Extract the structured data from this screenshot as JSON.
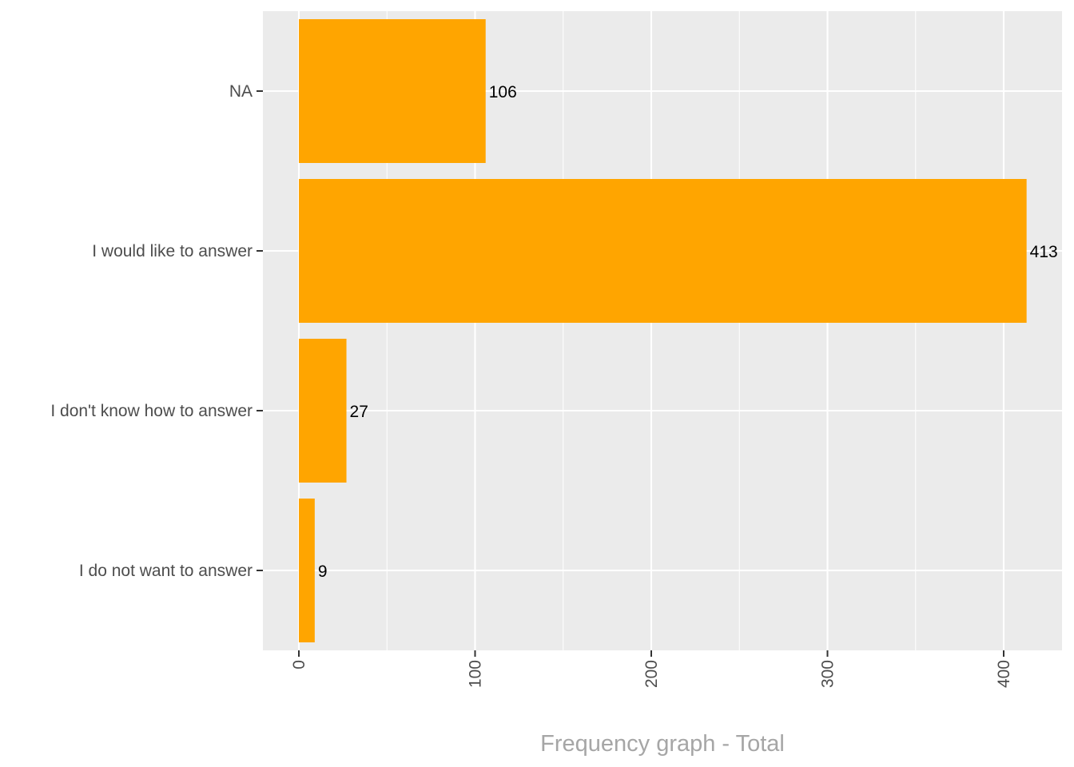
{
  "chart_data": {
    "type": "bar",
    "orientation": "horizontal",
    "categories": [
      "NA",
      "I would like to answer",
      "I don't know how to answer",
      "I do not want to answer"
    ],
    "values": [
      106,
      413,
      27,
      9
    ],
    "data_labels": [
      "106",
      "413",
      "27",
      "9"
    ],
    "xlabel": "Frequency graph - Total",
    "ylabel": "",
    "xlim": [
      0,
      430
    ],
    "x_ticks": [
      0,
      100,
      200,
      300,
      400
    ],
    "x_tick_labels": [
      "0",
      "100",
      "200",
      "300",
      "400"
    ],
    "x_tick_label_rotation": "vertical",
    "grid": true,
    "legend": "none",
    "colors": {
      "bar": "#FFA500",
      "panel_background": "#EBEBEB",
      "grid": "#FFFFFF",
      "axis_text": "#4D4D4D",
      "axis_title": "#A6A6A6",
      "data_label": "#000000"
    }
  }
}
